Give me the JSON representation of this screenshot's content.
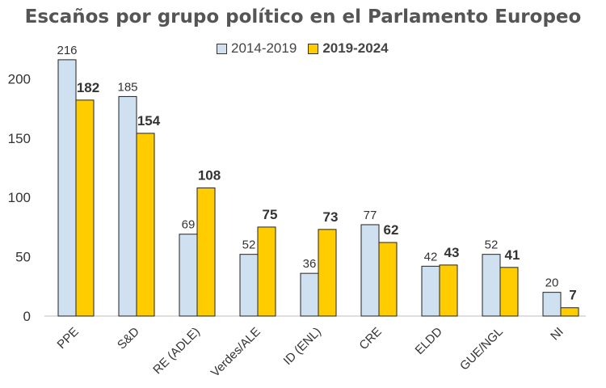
{
  "chart_data": {
    "type": "bar",
    "title": "Escaños por grupo político en el Parlamento Europeo",
    "categories": [
      "PPE",
      "S&D",
      "RE (ADLE)",
      "Verdes/ALE",
      "ID (ENL)",
      "CRE",
      "ELDD",
      "GUE/NGL",
      "NI"
    ],
    "series": [
      {
        "name": "2014-2019",
        "color": "#cfe0f1",
        "values": [
          216,
          185,
          69,
          52,
          36,
          77,
          42,
          52,
          20
        ]
      },
      {
        "name": "2019-2024",
        "color": "#ffcc00",
        "values": [
          182,
          154,
          108,
          75,
          73,
          62,
          43,
          41,
          7
        ]
      }
    ],
    "ylim": [
      0,
      220
    ],
    "yticks": [
      0,
      50,
      100,
      150,
      200
    ],
    "grid": false,
    "legend_position": "top-center"
  }
}
